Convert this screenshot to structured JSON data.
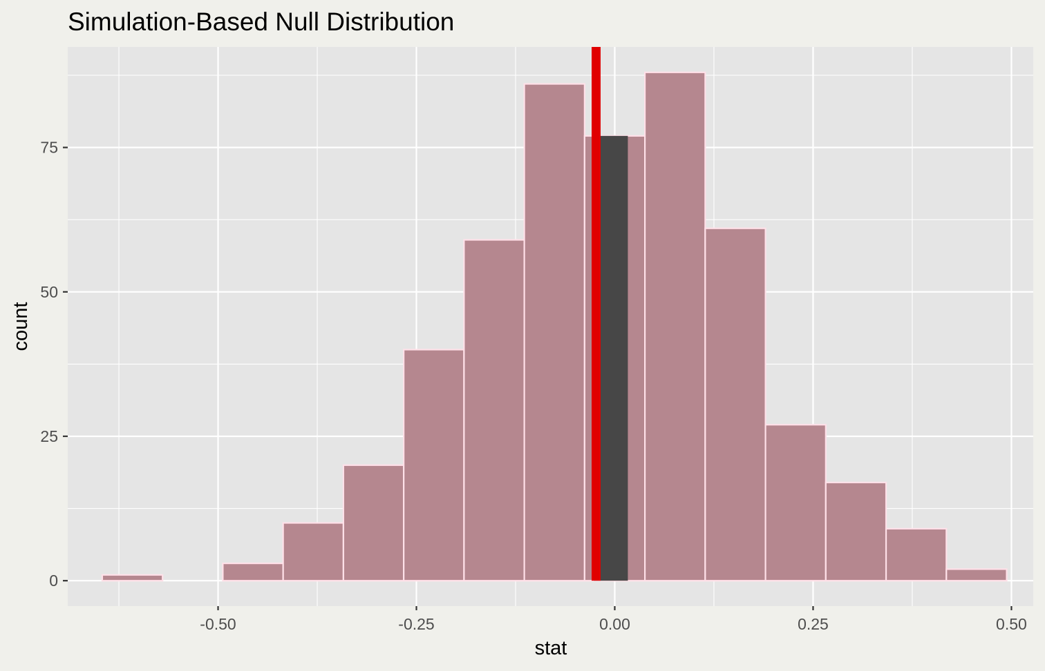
{
  "chart_data": {
    "type": "bar",
    "title": "Simulation-Based Null Distribution",
    "xlabel": "stat",
    "ylabel": "count",
    "xlim": [
      -0.6895,
      0.5275
    ],
    "ylim": [
      -4.4,
      92.4
    ],
    "x_ticks": [
      -0.5,
      -0.25,
      0.0,
      0.25,
      0.5
    ],
    "x_tick_labels": [
      "-0.50",
      "-0.25",
      "0.00",
      "0.25",
      "0.50"
    ],
    "y_ticks": [
      0,
      25,
      50,
      75
    ],
    "y_tick_labels": [
      "0",
      "25",
      "50",
      "75"
    ],
    "x_minor_ticks": [
      -0.625,
      -0.375,
      -0.125,
      0.125,
      0.375
    ],
    "y_minor_ticks": [
      12.5,
      37.5,
      62.5,
      87.5
    ],
    "grid": true,
    "bin_width": 0.076,
    "bins": [
      {
        "center": -0.608,
        "count": 1
      },
      {
        "center": -0.532,
        "count": 0
      },
      {
        "center": -0.456,
        "count": 3
      },
      {
        "center": -0.38,
        "count": 10
      },
      {
        "center": -0.304,
        "count": 20
      },
      {
        "center": -0.228,
        "count": 40
      },
      {
        "center": -0.152,
        "count": 59
      },
      {
        "center": -0.076,
        "count": 86
      },
      {
        "center": 0.0,
        "count": 77
      },
      {
        "center": 0.076,
        "count": 88
      },
      {
        "center": 0.152,
        "count": 61
      },
      {
        "center": 0.228,
        "count": 27
      },
      {
        "center": 0.304,
        "count": 17
      },
      {
        "center": 0.38,
        "count": 9
      },
      {
        "center": 0.456,
        "count": 2
      }
    ],
    "shaded_region": {
      "from": -0.0265,
      "to": 0.0165
    },
    "observed_stat": -0.0235,
    "colors": {
      "bar_fill": "#b5878f",
      "bar_outline": "#ffe0e8",
      "shaded_fill": "#474747",
      "observed_line": "#e00000",
      "panel_background": "#e5e5e5",
      "page_background": "#f0f0eb",
      "gridline": "#ffffff"
    }
  }
}
